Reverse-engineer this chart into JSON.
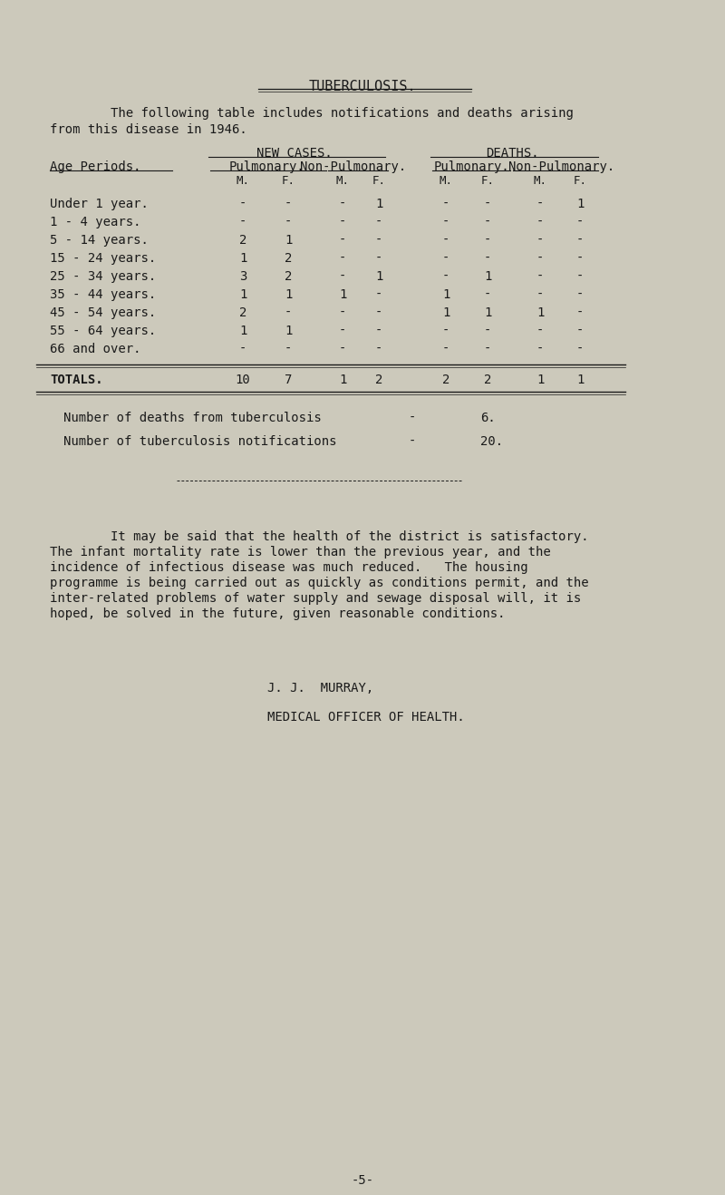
{
  "bg_color": "#ccc9bb",
  "text_color": "#1a1a1a",
  "title": "TUBERCULOSIS.",
  "intro_line1": "        The following table includes notifications and deaths arising",
  "intro_line2": "from this disease in 1946.",
  "age_col_header": "Age Periods.",
  "age_periods": [
    "Under 1 year.",
    "1 - 4 years.",
    "5 - 14 years.",
    "15 - 24 years.",
    "25 - 34 years.",
    "35 - 44 years.",
    "45 - 54 years.",
    "55 - 64 years.",
    "66 and over."
  ],
  "table_data": [
    [
      "-",
      "-",
      "-",
      "1",
      "-",
      "-",
      "-",
      "1"
    ],
    [
      "-",
      "-",
      "-",
      "-",
      "-",
      "-",
      "-",
      "-"
    ],
    [
      "2",
      "1",
      "-",
      "-",
      "-",
      "-",
      "-",
      "-"
    ],
    [
      "1",
      "2",
      "-",
      "-",
      "-",
      "-",
      "-",
      "-"
    ],
    [
      "3",
      "2",
      "-",
      "1",
      "-",
      "1",
      "-",
      "-"
    ],
    [
      "1",
      "1",
      "1",
      "-",
      "1",
      "-",
      "-",
      "-"
    ],
    [
      "2",
      "-",
      "-",
      "-",
      "1",
      "1",
      "1",
      "-"
    ],
    [
      "1",
      "1",
      "-",
      "-",
      "-",
      "-",
      "-",
      "-"
    ],
    [
      "-",
      "-",
      "-",
      "-",
      "-",
      "-",
      "-",
      "-"
    ]
  ],
  "totals_label": "TOTALS.",
  "totals_data": [
    "10",
    "7",
    "1",
    "2",
    "2",
    "2",
    "1",
    "1"
  ],
  "deaths_line": "Number of deaths from tuberculosis",
  "deaths_val": "6.",
  "notif_line": "Number of tuberculosis notifications",
  "notif_val": "20.",
  "para_line1": "        It may be said that the health of the district is satisfactory.",
  "para_line2": "The infant mortality rate is lower than the previous year, and the",
  "para_line3": "incidence of infectious disease was much reduced.   The housing",
  "para_line4": "programme is being carried out as quickly as conditions permit, and the",
  "para_line5": "inter-related problems of water supply and sewage disposal will, it is",
  "para_line6": "hoped, be solved in the future, given reasonable conditions.",
  "sig1": "J. J.  MURRAY,",
  "sig2": "MEDICAL OFFICER OF HEALTH.",
  "page_num": "-5-",
  "dash": "-"
}
